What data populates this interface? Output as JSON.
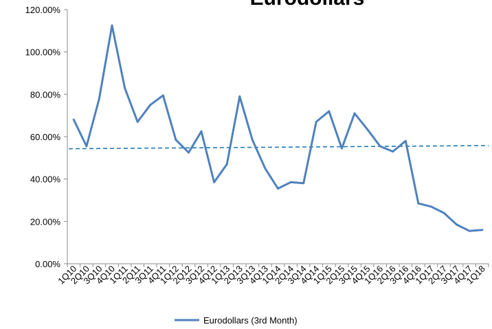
{
  "chart_data": {
    "type": "line",
    "title": "Eurodollars",
    "xlabel": "",
    "ylabel": "",
    "ylim": [
      0,
      120
    ],
    "yticks": [
      "0.00%",
      "20.00%",
      "40.00%",
      "60.00%",
      "80.00%",
      "100.00%",
      "120.00%"
    ],
    "yticks_values": [
      0,
      20,
      40,
      60,
      80,
      100,
      120
    ],
    "categories": [
      "1Q10",
      "2Q10",
      "3Q10",
      "4Q10",
      "1Q11",
      "2Q11",
      "3Q11",
      "4Q11",
      "1Q12",
      "2Q12",
      "3Q12",
      "4Q12",
      "1Q13",
      "2Q13",
      "3Q13",
      "4Q13",
      "1Q14",
      "2Q14",
      "3Q14",
      "4Q14",
      "1Q15",
      "2Q15",
      "3Q15",
      "4Q15",
      "1Q16",
      "2Q16",
      "3Q16",
      "4Q16",
      "1Q17",
      "2Q17",
      "3Q17",
      "4Q17",
      "1Q18"
    ],
    "series": [
      {
        "name": "Eurodollars (3rd Month)",
        "color": "#4f81bd",
        "values": [
          68,
          55.5,
          78,
          112.5,
          83,
          67,
          75,
          79.5,
          58.5,
          52.5,
          62.5,
          38.5,
          47,
          79,
          58.5,
          45,
          35.5,
          38.5,
          38,
          67,
          72,
          54.5,
          71,
          63.5,
          55.5,
          53,
          58,
          28.5,
          27,
          24,
          18.5,
          15.5,
          16
        ]
      }
    ],
    "trendline": {
      "color": "#1f7ab8",
      "style": "dashed",
      "start": 54.3,
      "end": 55.8
    },
    "grid": false,
    "legend": "bottom"
  }
}
